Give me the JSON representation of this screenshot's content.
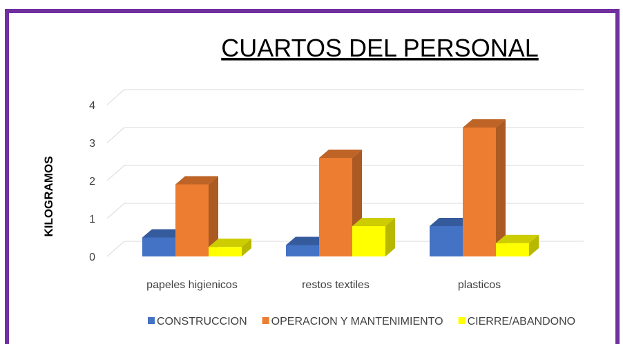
{
  "chart_data": {
    "type": "bar3d",
    "title": "CUARTOS DEL PERSONAL",
    "y_label": "KILOGRAMOS",
    "categories": [
      "papeles higienicos",
      "restos textiles",
      "plasticos"
    ],
    "series": [
      {
        "name": "CONSTRUCCION",
        "color": "#4472c4",
        "values": [
          0.5,
          0.3,
          0.8
        ]
      },
      {
        "name": "OPERACION Y MANTENIMIENTO",
        "color": "#ed7d31",
        "values": [
          1.9,
          2.6,
          3.4
        ]
      },
      {
        "name": "CIERRE/ABANDONO",
        "color": "#ffff00",
        "values": [
          0.25,
          0.8,
          0.35
        ]
      }
    ],
    "ylim": [
      0,
      4
    ],
    "yticks": [
      0,
      1,
      2,
      3,
      4
    ],
    "grid": true,
    "legend": "bottom"
  }
}
